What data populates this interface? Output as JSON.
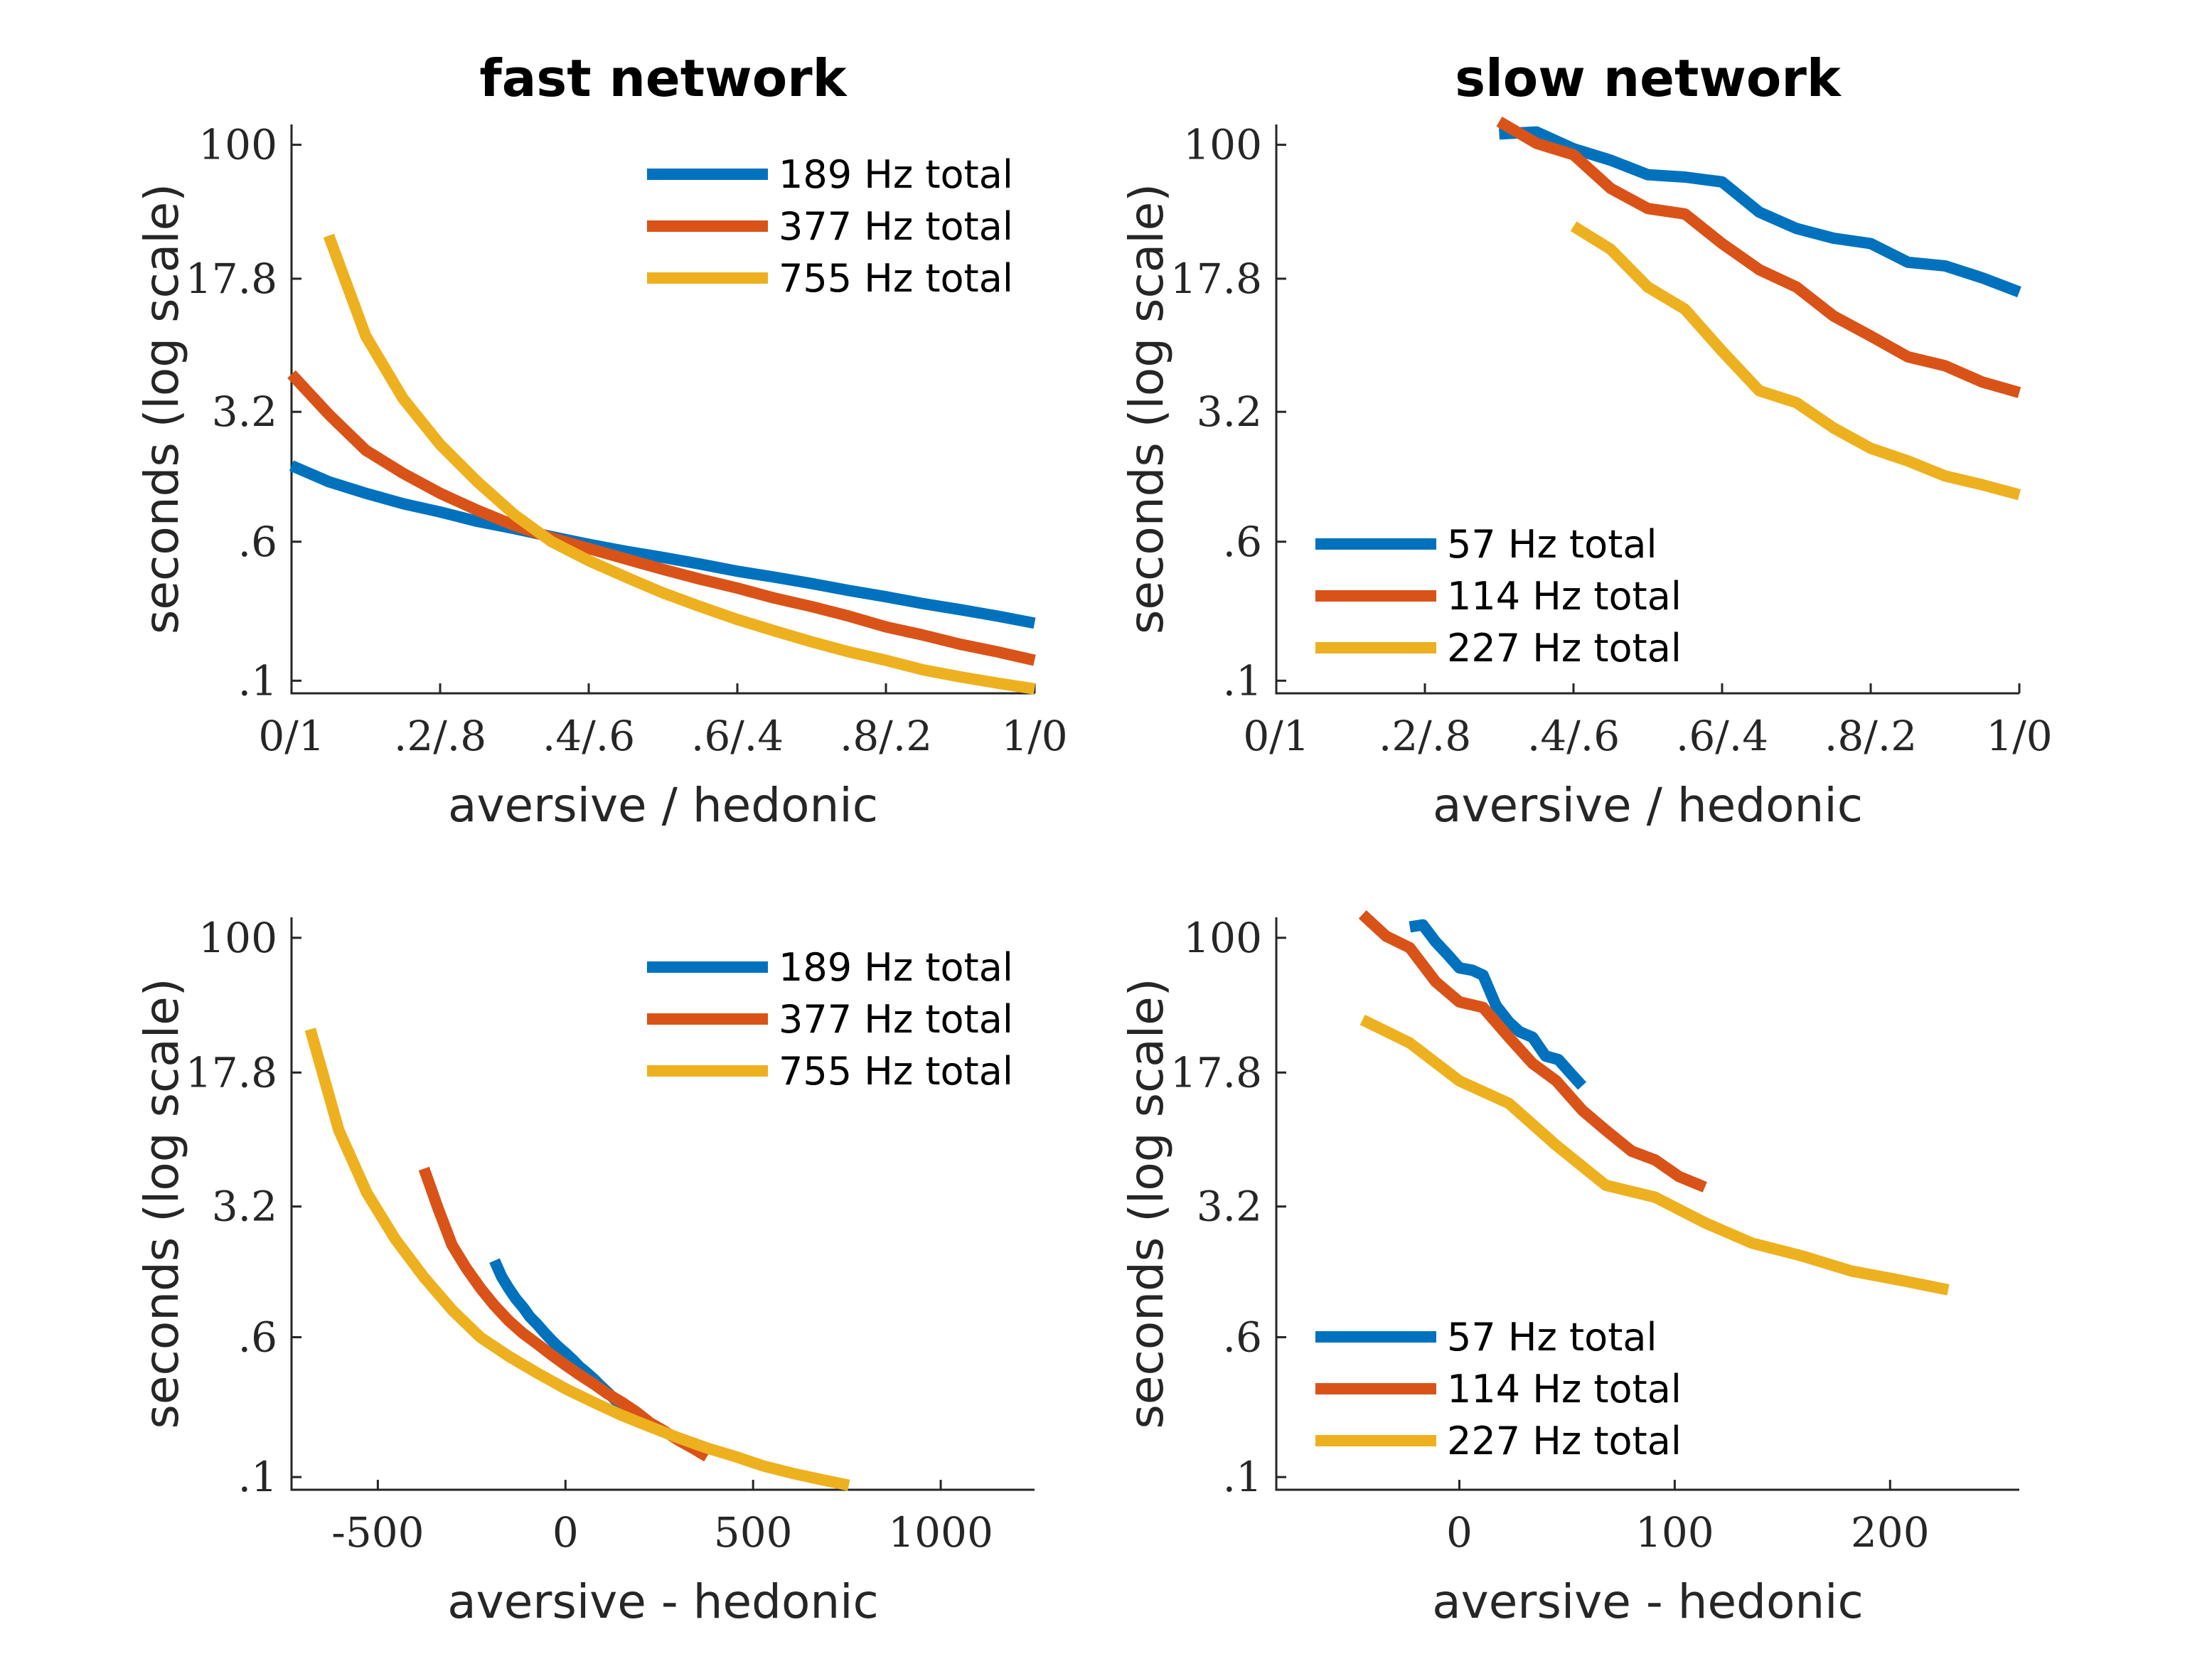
{
  "colors": {
    "blue": "#0072BD",
    "orange": "#D95319",
    "yellow": "#EDB120"
  },
  "chart_data": [
    {
      "id": "tl",
      "type": "line",
      "title": "fast network",
      "xlabel": "aversive / hedonic",
      "ylabel": "seconds (log scale)",
      "yscale": "log",
      "xlim": [
        0,
        1
      ],
      "ylim": [
        0.085,
        130
      ],
      "xticks": [
        0,
        0.2,
        0.4,
        0.6,
        0.8,
        1
      ],
      "xticklabels": [
        "0/1",
        ".2/.8",
        ".4/.6",
        ".6/.4",
        ".8/.2",
        "1/0"
      ],
      "yticks": [
        0.1,
        0.6,
        3.2,
        17.8,
        100
      ],
      "yticklabels": [
        ".1",
        ".6",
        "3.2",
        "17.8",
        "100"
      ],
      "legend_position": "top-right",
      "series": [
        {
          "name": "189 Hz total",
          "color": "#0072BD",
          "x": [
            0,
            0.05,
            0.1,
            0.15,
            0.2,
            0.25,
            0.3,
            0.35,
            0.4,
            0.45,
            0.5,
            0.55,
            0.6,
            0.65,
            0.7,
            0.75,
            0.8,
            0.85,
            0.9,
            0.95,
            1
          ],
          "y": [
            1.6,
            1.3,
            1.12,
            0.98,
            0.88,
            0.78,
            0.71,
            0.64,
            0.58,
            0.53,
            0.49,
            0.45,
            0.41,
            0.38,
            0.35,
            0.32,
            0.295,
            0.27,
            0.25,
            0.23,
            0.21
          ]
        },
        {
          "name": "377 Hz total",
          "color": "#D95319",
          "x": [
            0,
            0.05,
            0.1,
            0.15,
            0.2,
            0.25,
            0.3,
            0.35,
            0.4,
            0.45,
            0.5,
            0.55,
            0.6,
            0.65,
            0.7,
            0.75,
            0.8,
            0.85,
            0.9,
            0.95,
            1
          ],
          "y": [
            5.2,
            3.1,
            1.95,
            1.45,
            1.12,
            0.9,
            0.74,
            0.63,
            0.55,
            0.48,
            0.42,
            0.37,
            0.33,
            0.29,
            0.26,
            0.23,
            0.2,
            0.18,
            0.16,
            0.145,
            0.13
          ]
        },
        {
          "name": "755 Hz total",
          "color": "#EDB120",
          "x": [
            0.05,
            0.1,
            0.15,
            0.2,
            0.25,
            0.3,
            0.35,
            0.4,
            0.45,
            0.5,
            0.55,
            0.6,
            0.65,
            0.7,
            0.75,
            0.8,
            0.85,
            0.9,
            0.95,
            1
          ],
          "y": [
            31,
            8.5,
            3.8,
            2.1,
            1.3,
            0.85,
            0.6,
            0.47,
            0.38,
            0.31,
            0.26,
            0.22,
            0.19,
            0.165,
            0.145,
            0.13,
            0.115,
            0.105,
            0.097,
            0.09
          ]
        }
      ]
    },
    {
      "id": "tr",
      "type": "line",
      "title": "slow network",
      "xlabel": "aversive / hedonic",
      "ylabel": "seconds (log scale)",
      "yscale": "log",
      "xlim": [
        0,
        1
      ],
      "ylim": [
        0.085,
        130
      ],
      "xticks": [
        0,
        0.2,
        0.4,
        0.6,
        0.8,
        1
      ],
      "xticklabels": [
        "0/1",
        ".2/.8",
        ".4/.6",
        ".6/.4",
        ".8/.2",
        "1/0"
      ],
      "yticks": [
        0.1,
        0.6,
        3.2,
        17.8,
        100
      ],
      "yticklabels": [
        ".1",
        ".6",
        "3.2",
        "17.8",
        "100"
      ],
      "legend_position": "bottom-left",
      "series": [
        {
          "name": "57 Hz total",
          "color": "#0072BD",
          "x": [
            0.3,
            0.35,
            0.4,
            0.45,
            0.5,
            0.55,
            0.6,
            0.65,
            0.7,
            0.75,
            0.8,
            0.85,
            0.9,
            0.95,
            1
          ],
          "y": [
            115,
            118,
            95,
            82,
            68,
            66,
            62,
            42,
            34,
            30,
            28,
            22,
            21,
            18,
            15
          ]
        },
        {
          "name": "114 Hz total",
          "color": "#D95319",
          "x": [
            0.3,
            0.35,
            0.4,
            0.45,
            0.5,
            0.55,
            0.6,
            0.65,
            0.7,
            0.75,
            0.8,
            0.85,
            0.9,
            0.95,
            1
          ],
          "y": [
            135,
            102,
            88,
            57,
            44,
            41,
            28,
            20,
            16,
            11,
            8.5,
            6.5,
            5.8,
            4.7,
            4.1
          ]
        },
        {
          "name": "227 Hz total",
          "color": "#EDB120",
          "x": [
            0.4,
            0.45,
            0.5,
            0.55,
            0.6,
            0.65,
            0.7,
            0.75,
            0.8,
            0.85,
            0.9,
            0.95,
            1
          ],
          "y": [
            35,
            26,
            16,
            12,
            7,
            4.2,
            3.6,
            2.6,
            2.0,
            1.7,
            1.4,
            1.25,
            1.1
          ]
        }
      ]
    },
    {
      "id": "bl",
      "type": "line",
      "title": "",
      "xlabel": "aversive - hedonic",
      "ylabel": "seconds (log scale)",
      "yscale": "log",
      "xlim": [
        -730,
        1250
      ],
      "ylim": [
        0.085,
        130
      ],
      "xticks": [
        -500,
        0,
        500,
        1000
      ],
      "xticklabels": [
        "-500",
        "0",
        "500",
        "1000"
      ],
      "yticks": [
        0.1,
        0.6,
        3.2,
        17.8,
        100
      ],
      "yticklabels": [
        ".1",
        ".6",
        "3.2",
        "17.8",
        "100"
      ],
      "legend_position": "top-right",
      "series": [
        {
          "name": "189 Hz total",
          "color": "#0072BD",
          "x": [
            -189,
            -170,
            -151,
            -132,
            -113,
            -95,
            -76,
            -57,
            -38,
            -19,
            0,
            19,
            38,
            57,
            76,
            95,
            113,
            132,
            151,
            170,
            189
          ],
          "y": [
            1.6,
            1.3,
            1.12,
            0.98,
            0.88,
            0.78,
            0.71,
            0.64,
            0.58,
            0.53,
            0.49,
            0.45,
            0.41,
            0.38,
            0.35,
            0.32,
            0.295,
            0.27,
            0.25,
            0.23,
            0.21
          ]
        },
        {
          "name": "377 Hz total",
          "color": "#D95319",
          "x": [
            -377,
            -339,
            -302,
            -264,
            -226,
            -189,
            -151,
            -113,
            -75,
            -38,
            0,
            38,
            75,
            113,
            151,
            189,
            226,
            264,
            302,
            339,
            377
          ],
          "y": [
            5.2,
            3.1,
            1.95,
            1.45,
            1.12,
            0.9,
            0.74,
            0.63,
            0.55,
            0.48,
            0.42,
            0.37,
            0.33,
            0.29,
            0.26,
            0.23,
            0.2,
            0.18,
            0.16,
            0.145,
            0.13
          ]
        },
        {
          "name": "755 Hz total",
          "color": "#EDB120",
          "x": [
            -680,
            -604,
            -529,
            -453,
            -378,
            -302,
            -227,
            -151,
            -76,
            0,
            76,
            151,
            227,
            302,
            378,
            453,
            529,
            604,
            680,
            755
          ],
          "y": [
            31,
            8.5,
            3.8,
            2.1,
            1.3,
            0.85,
            0.6,
            0.47,
            0.38,
            0.31,
            0.26,
            0.22,
            0.19,
            0.165,
            0.145,
            0.13,
            0.115,
            0.105,
            0.097,
            0.09
          ]
        }
      ]
    },
    {
      "id": "br",
      "type": "line",
      "title": "",
      "xlabel": "aversive - hedonic",
      "ylabel": "seconds (log scale)",
      "yscale": "log",
      "xlim": [
        -85,
        260
      ],
      "ylim": [
        0.085,
        130
      ],
      "xticks": [
        0,
        100,
        200
      ],
      "xticklabels": [
        "0",
        "100",
        "200"
      ],
      "yticks": [
        0.1,
        0.6,
        3.2,
        17.8,
        100
      ],
      "yticklabels": [
        ".1",
        ".6",
        "3.2",
        "17.8",
        "100"
      ],
      "legend_position": "bottom-left",
      "series": [
        {
          "name": "57 Hz total",
          "color": "#0072BD",
          "x": [
            -23,
            -17,
            -11,
            -6,
            0,
            6,
            11,
            17,
            23,
            28,
            34,
            40,
            46,
            51,
            57
          ],
          "y": [
            115,
            118,
            95,
            82,
            68,
            66,
            62,
            42,
            34,
            30,
            28,
            22,
            21,
            18,
            15
          ]
        },
        {
          "name": "114 Hz total",
          "color": "#D95319",
          "x": [
            -45,
            -34,
            -23,
            -11,
            0,
            11,
            23,
            34,
            45,
            57,
            68,
            80,
            91,
            102,
            114
          ],
          "y": [
            135,
            102,
            88,
            57,
            44,
            41,
            28,
            20,
            16,
            11,
            8.5,
            6.5,
            5.8,
            4.7,
            4.1
          ]
        },
        {
          "name": "227 Hz total",
          "color": "#EDB120",
          "x": [
            -45,
            -23,
            0,
            23,
            45,
            68,
            91,
            114,
            136,
            159,
            182,
            204,
            227
          ],
          "y": [
            35,
            26,
            16,
            12,
            7,
            4.2,
            3.6,
            2.6,
            2.0,
            1.7,
            1.4,
            1.25,
            1.1
          ]
        }
      ]
    }
  ]
}
